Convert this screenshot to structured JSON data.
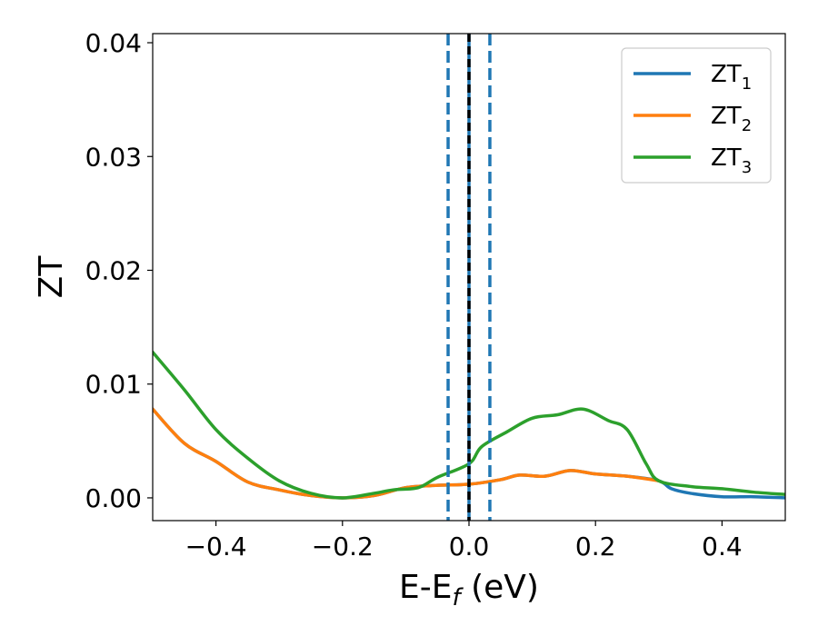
{
  "chart_data": {
    "type": "line",
    "title": "",
    "xlabel": "E-E",
    "xlabel_sub": "f",
    "xlabel_unit": " (eV)",
    "ylabel": "ZT",
    "xlim": [
      -0.5,
      0.5
    ],
    "ylim": [
      -0.002,
      0.0408
    ],
    "xticks": [
      -0.4,
      -0.2,
      0.0,
      0.2,
      0.4
    ],
    "xtick_labels": [
      "−0.4",
      "−0.2",
      "0.0",
      "0.2",
      "0.4"
    ],
    "yticks": [
      0.0,
      0.01,
      0.02,
      0.03,
      0.04
    ],
    "ytick_labels": [
      "0.00",
      "0.01",
      "0.02",
      "0.03",
      "0.04"
    ],
    "grid": false,
    "legend_position": "top-right",
    "series": [
      {
        "name": "ZT",
        "name_sub": "1",
        "color": "#1f77b4",
        "x": [
          -0.5,
          -0.45,
          -0.4,
          -0.35,
          -0.3,
          -0.25,
          -0.2,
          -0.15,
          -0.1,
          -0.05,
          0.0,
          0.05,
          0.08,
          0.12,
          0.16,
          0.2,
          0.25,
          0.3,
          0.32,
          0.35,
          0.4,
          0.45,
          0.5
        ],
        "y": [
          0.0078,
          0.0048,
          0.0032,
          0.0014,
          0.0007,
          0.0002,
          0.0,
          0.0002,
          0.0009,
          0.0011,
          0.0012,
          0.0016,
          0.002,
          0.0019,
          0.0024,
          0.0021,
          0.0019,
          0.0015,
          0.0008,
          0.0004,
          0.0001,
          0.0001,
          0.0
        ]
      },
      {
        "name": "ZT",
        "name_sub": "2",
        "color": "#ff7f0e",
        "x": [
          -0.5,
          -0.45,
          -0.4,
          -0.35,
          -0.3,
          -0.25,
          -0.2,
          -0.15,
          -0.1,
          -0.05,
          0.0,
          0.05,
          0.08,
          0.12,
          0.16,
          0.2,
          0.25,
          0.3
        ],
        "y": [
          0.0078,
          0.0048,
          0.0032,
          0.0014,
          0.0007,
          0.0002,
          0.0,
          0.0002,
          0.0009,
          0.0011,
          0.0012,
          0.0016,
          0.002,
          0.0019,
          0.0024,
          0.0021,
          0.0019,
          0.0015
        ]
      },
      {
        "name": "ZT",
        "name_sub": "3",
        "color": "#2ca02c",
        "x": [
          -0.5,
          -0.45,
          -0.4,
          -0.35,
          -0.3,
          -0.25,
          -0.2,
          -0.15,
          -0.12,
          -0.08,
          -0.05,
          0.0,
          0.02,
          0.06,
          0.1,
          0.14,
          0.18,
          0.22,
          0.25,
          0.28,
          0.3,
          0.35,
          0.4,
          0.45,
          0.5
        ],
        "y": [
          0.0128,
          0.0095,
          0.006,
          0.0035,
          0.0015,
          0.0004,
          0.0,
          0.0004,
          0.0007,
          0.0009,
          0.0018,
          0.003,
          0.0045,
          0.0058,
          0.007,
          0.0073,
          0.0078,
          0.0068,
          0.006,
          0.003,
          0.0015,
          0.001,
          0.0008,
          0.0005,
          0.0003
        ]
      }
    ],
    "vlines": [
      {
        "x": -0.033,
        "style": "dashed",
        "color": "#1f77b4"
      },
      {
        "x": 0.0,
        "style": "solid",
        "color": "#1f77b4"
      },
      {
        "x": 0.0,
        "style": "dashed",
        "color": "#000000"
      },
      {
        "x": 0.033,
        "style": "dashed",
        "color": "#1f77b4"
      }
    ]
  }
}
